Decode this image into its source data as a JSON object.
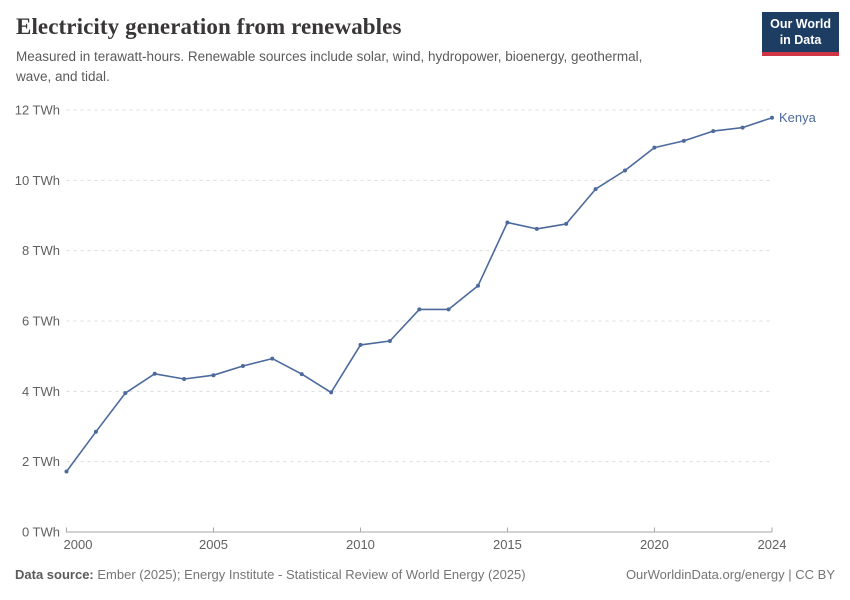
{
  "header": {
    "title": "Electricity generation from renewables",
    "subtitle": "Measured in terawatt-hours. Renewable sources include solar, wind, hydropower, bioenergy, geothermal, wave, and tidal."
  },
  "logo": {
    "line1": "Our World",
    "line2": "in Data",
    "bg_color": "#1d3d63",
    "accent_color": "#cf3544"
  },
  "chart_data": {
    "type": "line",
    "title": "Electricity generation from renewables",
    "entity": "Kenya",
    "unit": "TWh",
    "x": [
      2000,
      2001,
      2002,
      2003,
      2004,
      2005,
      2006,
      2007,
      2008,
      2009,
      2010,
      2011,
      2012,
      2013,
      2014,
      2015,
      2016,
      2017,
      2018,
      2019,
      2020,
      2021,
      2022,
      2023,
      2024
    ],
    "values": [
      1.72,
      2.85,
      3.95,
      4.5,
      4.35,
      4.46,
      4.72,
      4.93,
      4.49,
      3.97,
      5.32,
      5.43,
      6.33,
      6.33,
      7.0,
      8.8,
      8.62,
      8.76,
      9.75,
      10.28,
      10.93,
      11.12,
      11.4,
      11.5,
      11.78
    ],
    "xlim": [
      2000,
      2024
    ],
    "ylim": [
      0,
      12
    ],
    "x_ticks": [
      2000,
      2005,
      2010,
      2015,
      2020,
      2024
    ],
    "y_ticks": [
      0,
      2,
      4,
      6,
      8,
      10,
      12
    ],
    "grid": "horizontal-dashed",
    "legend_position": "end-of-line",
    "line_color": "#4C6A9C"
  },
  "footer": {
    "source_label": "Data source:",
    "source_text": "Ember (2025); Energy Institute - Statistical Review of World Energy (2025)",
    "credit": "OurWorldinData.org/energy | CC BY"
  }
}
